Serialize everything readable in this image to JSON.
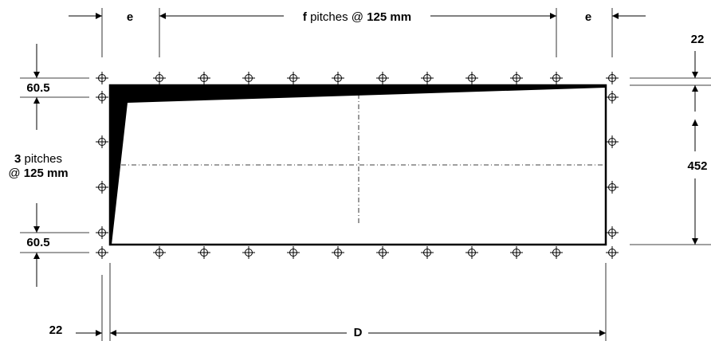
{
  "top": {
    "e_left": "e",
    "pitch_count": "f",
    "pitch_text": " pitches @ ",
    "pitch_value": "125 mm",
    "e_right": "e"
  },
  "left": {
    "top_offset": "60.5",
    "pitch_count": "3",
    "pitch_text": " pitches",
    "pitch_at": "@ ",
    "pitch_value": "125 mm",
    "bottom_offset": "60.5"
  },
  "right": {
    "top_margin": "22",
    "height": "452"
  },
  "bottom": {
    "left_margin": "22",
    "width_label": "D"
  },
  "colors": {
    "line": "#000000",
    "wedge": "#000000",
    "background": "#ffffff"
  },
  "icons": [
    "fixing-hole-icon"
  ]
}
